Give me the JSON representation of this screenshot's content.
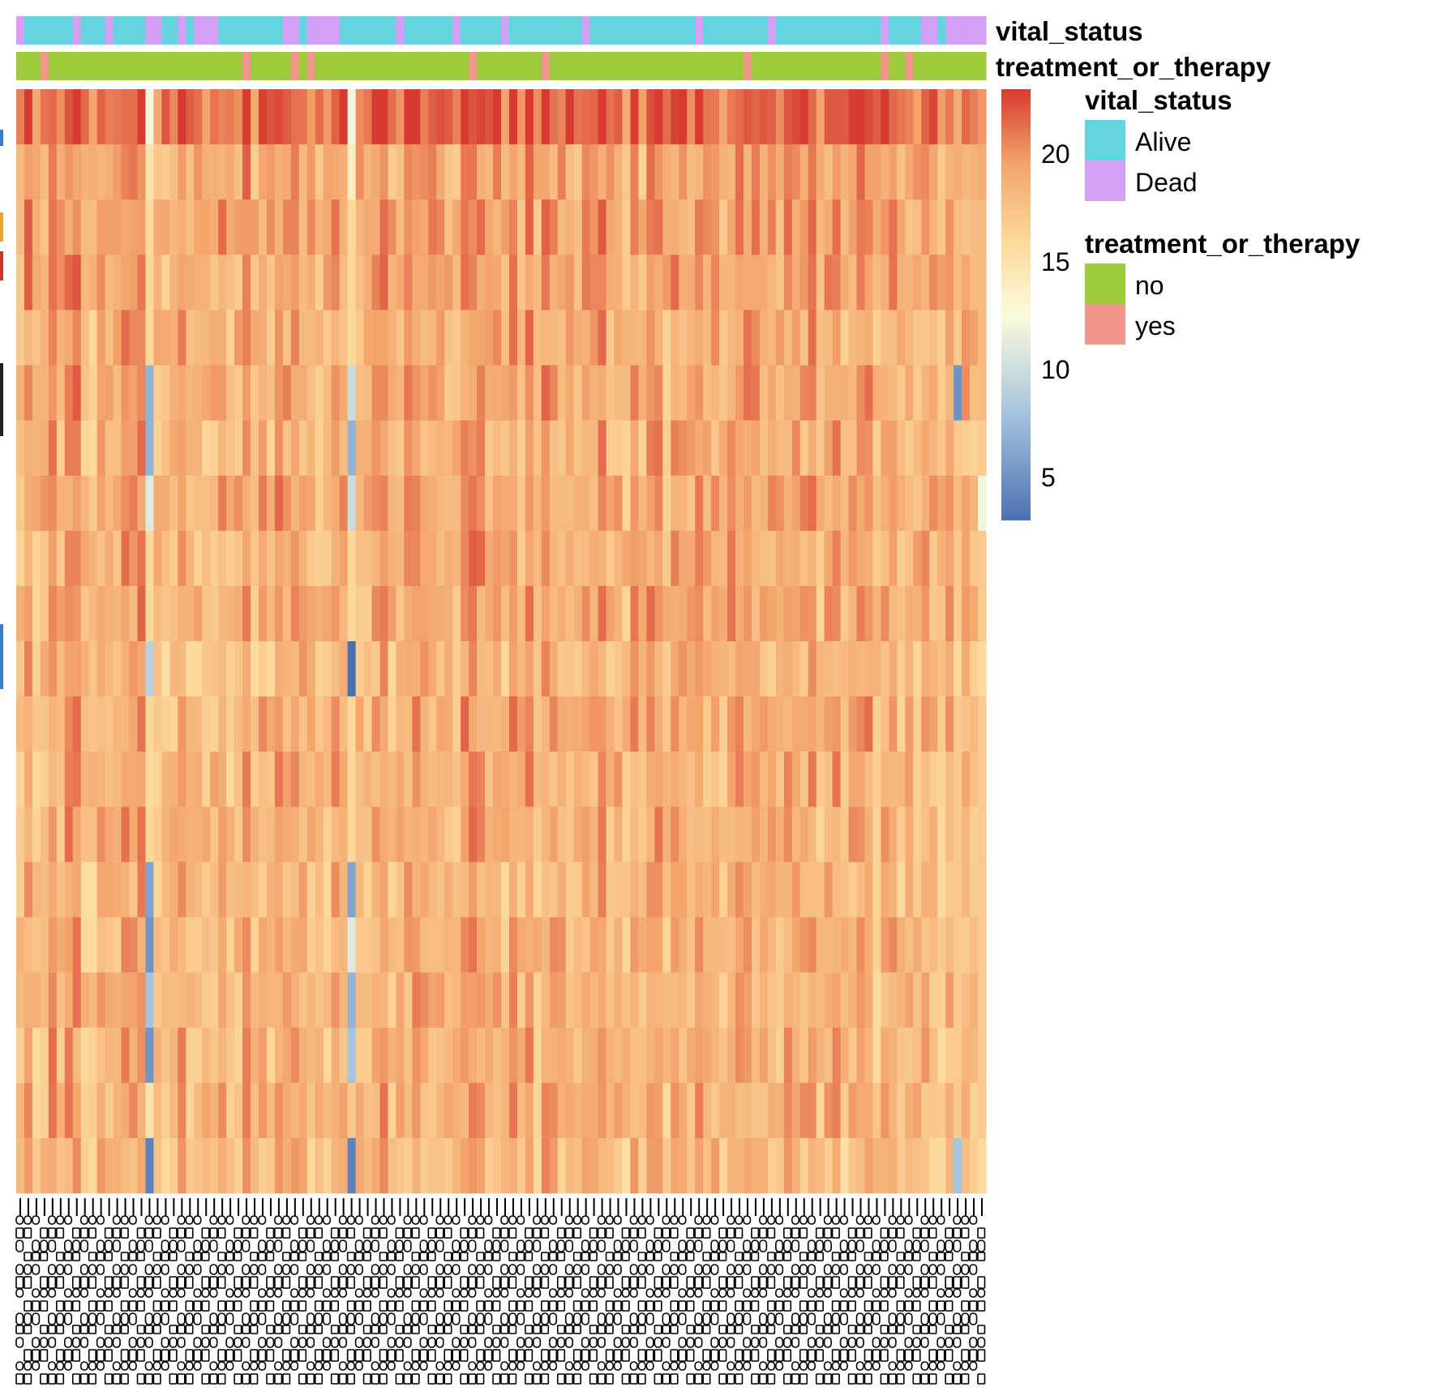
{
  "chart_data": {
    "type": "heatmap",
    "n_rows": 20,
    "n_columns": 120,
    "color_scale": {
      "min": 3,
      "max": 23,
      "stops": [
        {
          "value": 3,
          "color": "#4a72b3"
        },
        {
          "value": 8,
          "color": "#a7c4de"
        },
        {
          "value": 12.5,
          "color": "#fbfbdc"
        },
        {
          "value": 16,
          "color": "#fcd89a"
        },
        {
          "value": 19.5,
          "color": "#f3a56c"
        },
        {
          "value": 23,
          "color": "#d73b2f"
        }
      ],
      "ticks": [
        "5",
        "10",
        "15",
        "20"
      ],
      "tick_values": [
        5,
        10,
        15,
        20
      ]
    },
    "row_means": [
      21.8,
      19.2,
      19.5,
      19.3,
      18.9,
      19.1,
      18.6,
      19.2,
      18.9,
      19.0,
      18.2,
      18.9,
      18.7,
      18.8,
      18.3,
      18.6,
      18.4,
      18.5,
      18.6,
      18.0
    ],
    "low_columns": [
      {
        "col": 16,
        "values": [
          12,
          15,
          16,
          16,
          16,
          7,
          7,
          11,
          16,
          16,
          9,
          16,
          16,
          16,
          6,
          5,
          8,
          5,
          15,
          4
        ]
      },
      {
        "col": 41,
        "values": [
          12,
          14,
          16,
          16,
          16,
          10,
          7,
          10,
          16,
          16,
          3,
          16,
          16,
          16,
          6,
          11,
          7,
          8,
          17,
          4
        ]
      },
      {
        "col": 116,
        "values": [
          19,
          19,
          18,
          18,
          17,
          5,
          17,
          18,
          17,
          17,
          16,
          17,
          17,
          17,
          17,
          17,
          17,
          17,
          17,
          8
        ]
      },
      {
        "col": 119,
        "values": [
          20,
          19,
          18,
          18,
          18,
          18,
          17,
          12,
          17,
          17,
          16,
          17,
          17,
          17,
          17,
          17,
          17,
          17,
          17,
          16
        ]
      }
    ],
    "annotations": [
      {
        "name": "vital_status",
        "levels": [
          {
            "label": "Alive",
            "color": "#63d5de"
          },
          {
            "label": "Dead",
            "color": "#d59ff5"
          }
        ],
        "dead_columns": [
          0,
          7,
          11,
          16,
          17,
          20,
          22,
          23,
          24,
          33,
          34,
          36,
          37,
          38,
          39,
          47,
          54,
          60,
          70,
          84,
          93,
          107,
          112,
          113,
          115,
          116,
          117,
          118,
          119
        ]
      },
      {
        "name": "treatment_or_therapy",
        "levels": [
          {
            "label": "no",
            "color": "#9fca3e"
          },
          {
            "label": "yes",
            "color": "#f0968b"
          }
        ],
        "yes_columns": [
          3,
          28,
          34,
          36,
          56,
          65,
          90,
          107,
          110
        ]
      }
    ],
    "legend_position": "right",
    "column_labels": "rotated sample barcodes (overlapping, illegible)"
  }
}
